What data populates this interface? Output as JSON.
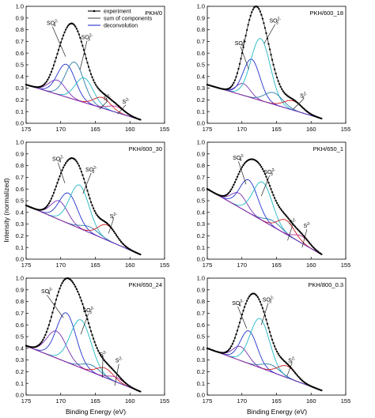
{
  "figure": {
    "ylabel": "Intensity (normalized)",
    "xlabel": "Binding Energy (eV)",
    "legend": [
      {
        "label": "experiment",
        "color": "#000000"
      },
      {
        "label": "sum of components",
        "color": "#555555"
      },
      {
        "label": "deconvolution",
        "color": "#2233cc"
      }
    ]
  },
  "chart_data": [
    {
      "type": "line",
      "title": "PKH/0",
      "xlim": [
        175,
        155
      ],
      "ylim": [
        0,
        1.0
      ],
      "baseline": [
        0.33,
        0.03
      ],
      "x_ticks": [
        175,
        170,
        165,
        160,
        155
      ],
      "y_ticks": [
        0.0,
        0.1,
        0.2,
        0.3,
        0.4,
        0.5,
        0.6,
        0.7,
        0.8,
        0.9,
        1.0
      ],
      "x_end": 158.5,
      "peaks": [
        {
          "center": 170.5,
          "height": 0.12,
          "sigma": 1.2,
          "color": "#7a2fb5"
        },
        {
          "center": 169.2,
          "height": 0.28,
          "sigma": 1.3,
          "color": "#2233cc"
        },
        {
          "center": 168.0,
          "height": 0.32,
          "sigma": 1.3,
          "color": "#2a7aa8"
        },
        {
          "center": 166.6,
          "height": 0.21,
          "sigma": 1.3,
          "color": "#22b8c8"
        },
        {
          "center": 164.0,
          "height": 0.09,
          "sigma": 1.2,
          "color": "#d02020"
        },
        {
          "center": 162.0,
          "height": 0.05,
          "sigma": 1.2,
          "color": "#c0309a"
        }
      ],
      "annotations": [
        {
          "main": "SO",
          "sup": "2-",
          "sub": "4",
          "at": [
            171.2,
            0.84
          ],
          "to": [
            169.3,
            0.57
          ]
        },
        {
          "main": "SO",
          "sup": "2-",
          "sub": "3",
          "at": [
            166.2,
            0.72
          ],
          "to": [
            167.2,
            0.46
          ]
        },
        {
          "main": "S",
          "sup": "2-",
          "sub": "x",
          "at": [
            163.3,
            0.2
          ],
          "to": [
            164.4,
            0.12
          ]
        },
        {
          "main": "S",
          "sup": "2-",
          "sub": "",
          "at": [
            160.6,
            0.17
          ],
          "to": [
            161.8,
            0.08
          ]
        }
      ]
    },
    {
      "type": "line",
      "title": "PKH/600_18",
      "xlim": [
        175,
        155
      ],
      "ylim": [
        0,
        1.0
      ],
      "baseline": [
        0.33,
        0.04
      ],
      "x_ticks": [
        175,
        170,
        165,
        160,
        155
      ],
      "y_ticks": [
        0.0,
        0.1,
        0.2,
        0.3,
        0.4,
        0.5,
        0.6,
        0.7,
        0.8,
        0.9,
        1.0
      ],
      "x_end": 158.5,
      "peaks": [
        {
          "center": 169.8,
          "height": 0.1,
          "sigma": 1.0,
          "color": "#7a2fb5"
        },
        {
          "center": 168.6,
          "height": 0.33,
          "sigma": 1.2,
          "color": "#2233cc"
        },
        {
          "center": 167.3,
          "height": 0.53,
          "sigma": 1.4,
          "color": "#22b8c8"
        },
        {
          "center": 165.4,
          "height": 0.1,
          "sigma": 1.3,
          "color": "#2a7aa8"
        },
        {
          "center": 162.6,
          "height": 0.08,
          "sigma": 1.3,
          "color": "#d02020"
        }
      ],
      "annotations": [
        {
          "main": "SO",
          "sup": "2-",
          "sub": "4",
          "at": [
            170.2,
            0.67
          ],
          "to": [
            169.0,
            0.46
          ]
        },
        {
          "main": "SO",
          "sup": "2-",
          "sub": "3",
          "at": [
            165.2,
            0.86
          ],
          "to": [
            166.8,
            0.68
          ]
        },
        {
          "main": "S",
          "sup": "2-",
          "sub": "x",
          "at": [
            161.1,
            0.22
          ],
          "to": [
            162.6,
            0.12
          ]
        }
      ]
    },
    {
      "type": "line",
      "title": "PKH/600_30",
      "xlim": [
        175,
        155
      ],
      "ylim": [
        0,
        1.0
      ],
      "baseline": [
        0.46,
        0.04
      ],
      "x_ticks": [
        175,
        170,
        165,
        160,
        155
      ],
      "y_ticks": [
        0.0,
        0.1,
        0.2,
        0.3,
        0.4,
        0.5,
        0.6,
        0.7,
        0.8,
        0.9,
        1.0
      ],
      "x_end": 158.5,
      "peaks": [
        {
          "center": 170.2,
          "height": 0.16,
          "sigma": 1.2,
          "color": "#7a2fb5"
        },
        {
          "center": 168.9,
          "height": 0.26,
          "sigma": 1.3,
          "color": "#2233cc"
        },
        {
          "center": 167.3,
          "height": 0.37,
          "sigma": 1.4,
          "color": "#22b8c8"
        },
        {
          "center": 165.8,
          "height": 0.05,
          "sigma": 1.3,
          "color": "#2a7aa8"
        },
        {
          "center": 163.3,
          "height": 0.13,
          "sigma": 1.3,
          "color": "#d02020"
        }
      ],
      "annotations": [
        {
          "main": "SO",
          "sup": "2-",
          "sub": "4",
          "at": [
            170.4,
            0.84
          ],
          "to": [
            169.4,
            0.65
          ]
        },
        {
          "main": "SO",
          "sup": "2-",
          "sub": "3",
          "at": [
            165.6,
            0.75
          ],
          "to": [
            166.8,
            0.56
          ]
        },
        {
          "main": "S",
          "sup": "2-",
          "sub": "x",
          "at": [
            162.4,
            0.35
          ],
          "to": [
            163.1,
            0.22
          ]
        }
      ]
    },
    {
      "type": "line",
      "title": "PKH/650_1",
      "xlim": [
        175,
        155
      ],
      "ylim": [
        0,
        1.0
      ],
      "baseline": [
        0.6,
        0.04
      ],
      "x_ticks": [
        175,
        170,
        165,
        160,
        155
      ],
      "y_ticks": [
        0.0,
        0.1,
        0.2,
        0.3,
        0.4,
        0.5,
        0.6,
        0.7,
        0.8,
        0.9,
        1.0
      ],
      "x_end": 158.5,
      "peaks": [
        {
          "center": 170.4,
          "height": 0.12,
          "sigma": 1.1,
          "color": "#7a2fb5"
        },
        {
          "center": 169.0,
          "height": 0.28,
          "sigma": 1.3,
          "color": "#2233cc"
        },
        {
          "center": 167.0,
          "height": 0.33,
          "sigma": 1.4,
          "color": "#22b8c8"
        },
        {
          "center": 165.5,
          "height": 0.05,
          "sigma": 1.2,
          "color": "#2a7aa8"
        },
        {
          "center": 163.6,
          "height": 0.12,
          "sigma": 1.2,
          "color": "#d02020"
        },
        {
          "center": 161.3,
          "height": 0.06,
          "sigma": 1.1,
          "color": "#c0309a"
        }
      ],
      "annotations": [
        {
          "main": "SO",
          "sup": "2-",
          "sub": "4",
          "at": [
            170.5,
            0.85
          ],
          "to": [
            169.4,
            0.64
          ]
        },
        {
          "main": "SO",
          "sup": "2-",
          "sub": "3",
          "at": [
            166.0,
            0.73
          ],
          "to": [
            167.2,
            0.54
          ]
        },
        {
          "main": "S",
          "sup": "2-",
          "sub": "x",
          "at": [
            162.7,
            0.3
          ],
          "to": [
            163.4,
            0.16
          ]
        },
        {
          "main": "S",
          "sup": "2-",
          "sub": "",
          "at": [
            160.6,
            0.27
          ],
          "to": [
            161.3,
            0.1
          ]
        }
      ]
    },
    {
      "type": "line",
      "title": "PKH/650_24",
      "xlim": [
        175,
        155
      ],
      "ylim": [
        0,
        1.0
      ],
      "baseline": [
        0.42,
        0.03
      ],
      "x_ticks": [
        175,
        170,
        165,
        160,
        155
      ],
      "y_ticks": [
        0.0,
        0.1,
        0.2,
        0.3,
        0.4,
        0.5,
        0.6,
        0.7,
        0.8,
        0.9,
        1.0
      ],
      "x_end": 158.5,
      "peaks": [
        {
          "center": 170.6,
          "height": 0.23,
          "sigma": 1.4,
          "color": "#7a2fb5"
        },
        {
          "center": 169.2,
          "height": 0.42,
          "sigma": 1.4,
          "color": "#2233cc"
        },
        {
          "center": 167.1,
          "height": 0.41,
          "sigma": 1.5,
          "color": "#22b8c8"
        },
        {
          "center": 165.6,
          "height": 0.06,
          "sigma": 1.3,
          "color": "#2a7aa8"
        },
        {
          "center": 163.6,
          "height": 0.08,
          "sigma": 1.2,
          "color": "#d02020"
        },
        {
          "center": 162.0,
          "height": 0.04,
          "sigma": 1.1,
          "color": "#c0309a"
        }
      ],
      "annotations": [
        {
          "main": "SO",
          "sup": "2-",
          "sub": "4",
          "at": [
            172.0,
            0.87
          ],
          "to": [
            169.6,
            0.66
          ]
        },
        {
          "main": "SO",
          "sup": "2-",
          "sub": "3",
          "at": [
            166.0,
            0.71
          ],
          "to": [
            167.1,
            0.52
          ]
        },
        {
          "main": "S",
          "sup": "2-",
          "sub": "x",
          "at": [
            163.9,
            0.33
          ],
          "to": [
            164.0,
            0.15
          ]
        },
        {
          "main": "S",
          "sup": "2-",
          "sub": "",
          "at": [
            161.6,
            0.28
          ],
          "to": [
            162.2,
            0.08
          ]
        }
      ]
    },
    {
      "type": "line",
      "title": "PKH/800_0.3",
      "xlim": [
        175,
        155
      ],
      "ylim": [
        0,
        1.0
      ],
      "baseline": [
        0.4,
        0.04
      ],
      "x_ticks": [
        175,
        170,
        165,
        160,
        155
      ],
      "y_ticks": [
        0.0,
        0.1,
        0.2,
        0.3,
        0.4,
        0.5,
        0.6,
        0.7,
        0.8,
        0.9,
        1.0
      ],
      "x_end": 158.5,
      "peaks": [
        {
          "center": 170.2,
          "height": 0.12,
          "sigma": 1.1,
          "color": "#7a2fb5"
        },
        {
          "center": 169.0,
          "height": 0.28,
          "sigma": 1.2,
          "color": "#2233cc"
        },
        {
          "center": 167.4,
          "height": 0.42,
          "sigma": 1.4,
          "color": "#22b8c8"
        },
        {
          "center": 165.8,
          "height": 0.06,
          "sigma": 1.3,
          "color": "#2a7aa8"
        },
        {
          "center": 163.5,
          "height": 0.1,
          "sigma": 1.3,
          "color": "#d02020"
        }
      ],
      "annotations": [
        {
          "main": "SO",
          "sup": "2-",
          "sub": "4",
          "at": [
            170.6,
            0.77
          ],
          "to": [
            169.3,
            0.57
          ]
        },
        {
          "main": "SO",
          "sup": "2-",
          "sub": "3",
          "at": [
            166.2,
            0.8
          ],
          "to": [
            167.2,
            0.6
          ]
        },
        {
          "main": "S",
          "sup": "2-",
          "sub": "x",
          "at": [
            162.8,
            0.28
          ],
          "to": [
            163.5,
            0.16
          ]
        }
      ]
    }
  ]
}
